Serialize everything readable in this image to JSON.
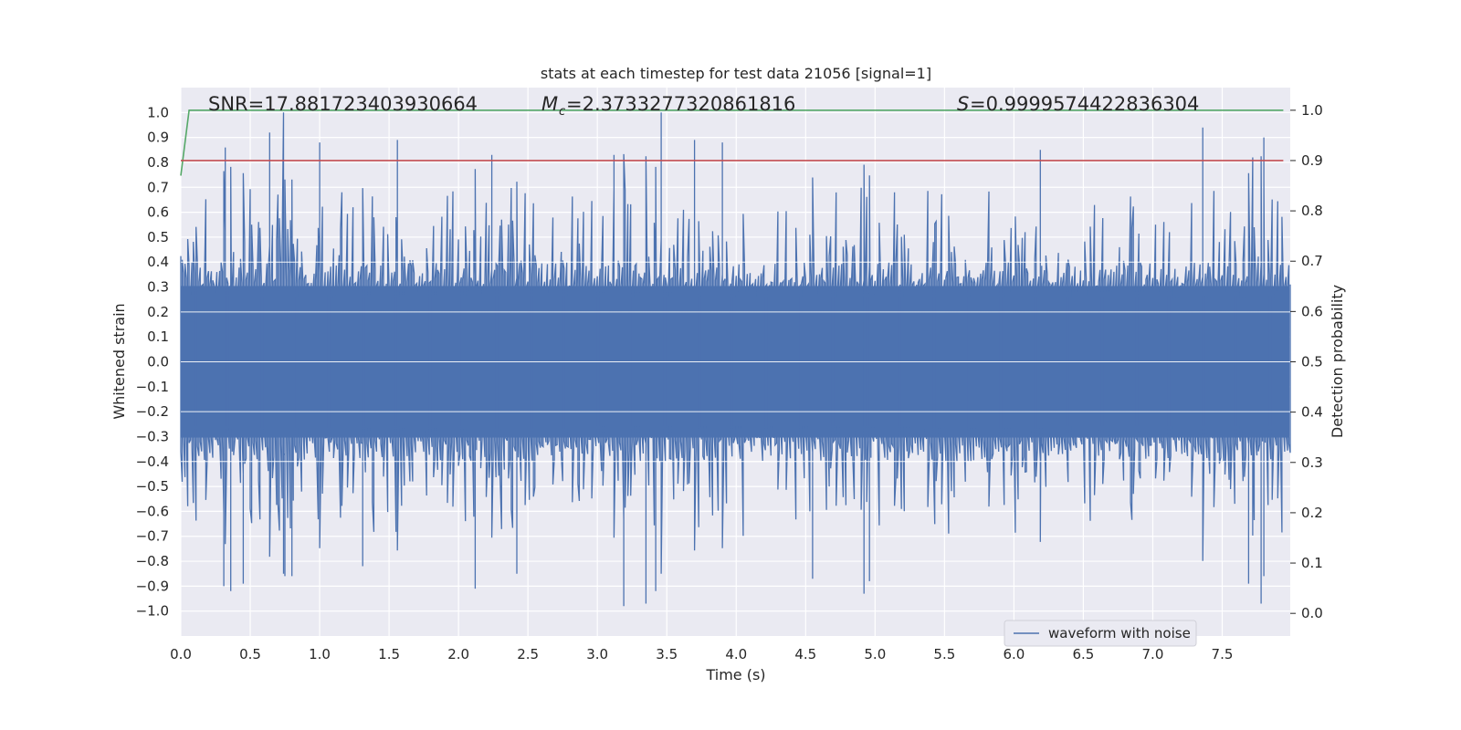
{
  "chart_data": {
    "type": "line",
    "title": "stats at each timestep for test data 21056 [signal=1]",
    "xlabel": "Time (s)",
    "ylabel": "Whitened strain",
    "y2label": "Detection probability",
    "xlim": [
      0.0,
      7.99
    ],
    "ylim": [
      -1.1,
      1.1
    ],
    "y2lim": [
      -0.045,
      1.045
    ],
    "grid": true,
    "legend_placement": "lower-center-right",
    "xticks": [
      0.0,
      0.5,
      1.0,
      1.5,
      2.0,
      2.5,
      3.0,
      3.5,
      4.0,
      4.5,
      5.0,
      5.5,
      6.0,
      6.5,
      7.0,
      7.5
    ],
    "xtick_labels": [
      "0.0",
      "0.5",
      "1.0",
      "1.5",
      "2.0",
      "2.5",
      "3.0",
      "3.5",
      "4.0",
      "4.5",
      "5.0",
      "5.5",
      "6.0",
      "6.5",
      "7.0",
      "7.5"
    ],
    "yticks": [
      1.0,
      0.9,
      0.8,
      0.7,
      0.6,
      0.5,
      0.4,
      0.3,
      0.2,
      0.1,
      0.0,
      -0.1,
      -0.2,
      -0.3,
      -0.4,
      -0.5,
      -0.6,
      -0.7,
      -0.8,
      -0.9,
      -1.0
    ],
    "ytick_labels": [
      "1.0",
      "0.9",
      "0.8",
      "0.7",
      "0.6",
      "0.5",
      "0.4",
      "0.3",
      "0.2",
      "0.1",
      "0.0",
      "−0.1",
      "−0.2",
      "−0.3",
      "−0.4",
      "−0.5",
      "−0.6",
      "−0.7",
      "−0.8",
      "−0.9",
      "−1.0"
    ],
    "y2ticks": [
      1.0,
      0.9,
      0.8,
      0.7,
      0.6,
      0.5,
      0.4,
      0.3,
      0.2,
      0.1,
      0.0
    ],
    "y2tick_labels": [
      "1.0",
      "0.9",
      "0.8",
      "0.7",
      "0.6",
      "0.5",
      "0.4",
      "0.3",
      "0.2",
      "0.1",
      "0.0"
    ],
    "annotations": {
      "snr": "SNR=17.881723403930664",
      "mc": "=2.3733277320861816",
      "s": "=0.9999574422836304"
    },
    "series": [
      {
        "name": "waveform with noise",
        "axis": "left",
        "color": "#4c72b0",
        "sampled_points": 800,
        "envelope_typical": [
          -0.38,
          0.38
        ],
        "peaks": [
          {
            "x": 0.32,
            "y": 0.86
          },
          {
            "x": 0.64,
            "y": 0.92
          },
          {
            "x": 0.74,
            "y": 1.0
          },
          {
            "x": 1.0,
            "y": 0.88
          },
          {
            "x": 1.56,
            "y": 0.89
          },
          {
            "x": 2.24,
            "y": 0.83
          },
          {
            "x": 3.12,
            "y": 0.83
          },
          {
            "x": 3.46,
            "y": 1.0
          },
          {
            "x": 3.7,
            "y": 0.89
          },
          {
            "x": 3.9,
            "y": 0.88
          },
          {
            "x": 6.19,
            "y": 0.85
          },
          {
            "x": 7.36,
            "y": 0.94
          },
          {
            "x": 7.8,
            "y": 0.9
          },
          {
            "x": 7.72,
            "y": 0.82
          }
        ],
        "troughs": [
          {
            "x": 0.31,
            "y": -0.9
          },
          {
            "x": 0.36,
            "y": -0.92
          },
          {
            "x": 0.45,
            "y": -0.89
          },
          {
            "x": 0.75,
            "y": -0.86
          },
          {
            "x": 0.8,
            "y": -0.86
          },
          {
            "x": 1.31,
            "y": -0.82
          },
          {
            "x": 2.12,
            "y": -0.91
          },
          {
            "x": 2.42,
            "y": -0.85
          },
          {
            "x": 3.19,
            "y": -0.98
          },
          {
            "x": 3.35,
            "y": -0.97
          },
          {
            "x": 3.42,
            "y": -0.92
          },
          {
            "x": 4.55,
            "y": -0.87
          },
          {
            "x": 4.92,
            "y": -0.93
          },
          {
            "x": 4.96,
            "y": -0.88
          },
          {
            "x": 7.69,
            "y": -0.89
          },
          {
            "x": 7.78,
            "y": -0.97
          },
          {
            "x": 7.8,
            "y": -0.86
          }
        ]
      },
      {
        "name": "",
        "axis": "right",
        "color": "#55a868",
        "points": [
          [
            0.0,
            0.87
          ],
          [
            0.06,
            1.0
          ],
          [
            0.1,
            1.0
          ],
          [
            7.94,
            1.0
          ]
        ]
      },
      {
        "name": "",
        "axis": "right",
        "color": "#c44e52",
        "points": [
          [
            0.0,
            0.9
          ],
          [
            7.94,
            0.9
          ]
        ]
      }
    ],
    "legend": [
      "waveform with noise"
    ]
  }
}
